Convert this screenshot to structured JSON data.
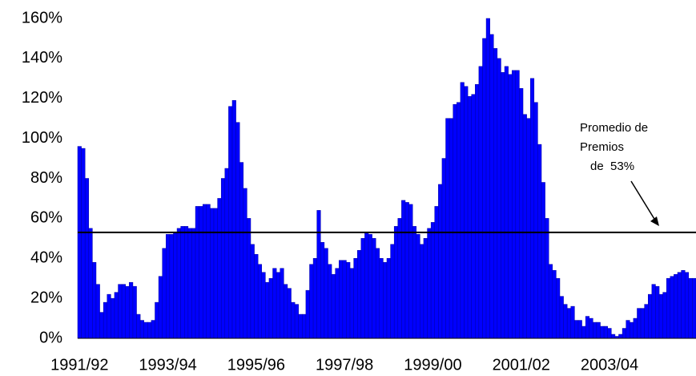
{
  "chart_data": {
    "type": "bar",
    "categories": [
      "1991/92",
      null,
      null,
      null,
      null,
      null,
      null,
      null,
      null,
      null,
      null,
      null,
      null,
      null,
      null,
      null,
      null,
      null,
      null,
      null,
      null,
      null,
      null,
      null,
      "1993/94",
      null,
      null,
      null,
      null,
      null,
      null,
      null,
      null,
      null,
      null,
      null,
      null,
      null,
      null,
      null,
      null,
      null,
      null,
      null,
      null,
      null,
      null,
      null,
      "1995/96",
      null,
      null,
      null,
      null,
      null,
      null,
      null,
      null,
      null,
      null,
      null,
      null,
      null,
      null,
      null,
      null,
      null,
      null,
      null,
      null,
      null,
      null,
      null,
      "1997/98",
      null,
      null,
      null,
      null,
      null,
      null,
      null,
      null,
      null,
      null,
      null,
      null,
      null,
      null,
      null,
      null,
      null,
      null,
      null,
      null,
      null,
      null,
      null,
      "1999/00",
      null,
      null,
      null,
      null,
      null,
      null,
      null,
      null,
      null,
      null,
      null,
      null,
      null,
      null,
      null,
      null,
      null,
      null,
      null,
      null,
      null,
      null,
      null,
      "2001/02",
      null,
      null,
      null,
      null,
      null,
      null,
      null,
      null,
      null,
      null,
      null,
      null,
      null,
      null,
      null,
      null,
      null,
      null,
      null,
      null,
      null,
      null,
      null,
      "2003/04",
      null,
      null,
      null,
      null,
      null,
      null,
      null,
      null,
      null,
      null,
      null,
      null,
      null,
      null,
      null,
      null,
      null,
      null,
      null,
      null,
      null,
      null,
      null
    ],
    "values": [
      96,
      95,
      80,
      55,
      38,
      27,
      13,
      18,
      22,
      20,
      23,
      27,
      27,
      26,
      28,
      26,
      12,
      9,
      8,
      8,
      9,
      18,
      31,
      45,
      52,
      52,
      53,
      55,
      56,
      56,
      55,
      55,
      66,
      66,
      67,
      67,
      65,
      65,
      70,
      80,
      85,
      116,
      119,
      108,
      88,
      75,
      60,
      47,
      42,
      37,
      33,
      28,
      30,
      35,
      33,
      35,
      27,
      25,
      18,
      17,
      12,
      12,
      24,
      37,
      40,
      64,
      48,
      45,
      37,
      32,
      35,
      39,
      39,
      38,
      35,
      40,
      44,
      50,
      53,
      52,
      50,
      45,
      40,
      38,
      40,
      47,
      56,
      60,
      69,
      68,
      67,
      56,
      52,
      47,
      50,
      55,
      58,
      66,
      77,
      90,
      110,
      110,
      117,
      118,
      128,
      126,
      121,
      122,
      127,
      136,
      150,
      160,
      152,
      145,
      140,
      133,
      136,
      132,
      134,
      134,
      125,
      112,
      110,
      130,
      118,
      97,
      78,
      60,
      37,
      34,
      30,
      21,
      17,
      15,
      16,
      9,
      9,
      6,
      11,
      10,
      8,
      8,
      6,
      6,
      5,
      2,
      1,
      2,
      5,
      9,
      8,
      10,
      15,
      15,
      17,
      22,
      27,
      26,
      22,
      23,
      30,
      31,
      32,
      33,
      34,
      33,
      30,
      30
    ],
    "color": "#0000ff",
    "ylim": [
      0,
      160
    ],
    "yticks": [
      {
        "value": 0,
        "label": "0%"
      },
      {
        "value": 20,
        "label": "20%"
      },
      {
        "value": 40,
        "label": "40%"
      },
      {
        "value": 60,
        "label": "60%"
      },
      {
        "value": 80,
        "label": "80%"
      },
      {
        "value": 100,
        "label": "100%"
      },
      {
        "value": 120,
        "label": "120%"
      },
      {
        "value": 140,
        "label": "140%"
      },
      {
        "value": 160,
        "label": "160%"
      }
    ],
    "average": 53,
    "annotation": [
      "Promedio de",
      "Premios",
      "de  53%"
    ],
    "grid": false
  }
}
